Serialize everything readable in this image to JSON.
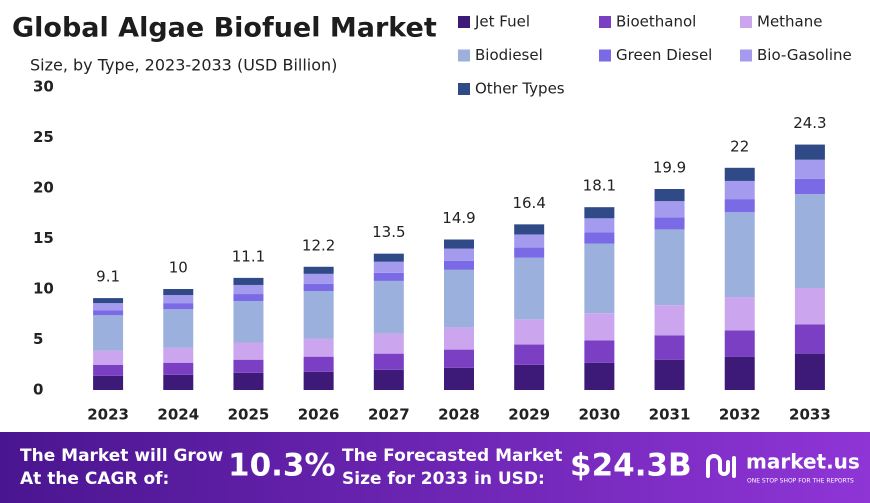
{
  "chart_data": {
    "type": "stacked_bar",
    "title": "Global Algae Biofuel Market",
    "subtitle": "Size, by Type, 2023-2033 (USD Billion)",
    "categories": [
      "2023",
      "2024",
      "2025",
      "2026",
      "2027",
      "2028",
      "2029",
      "2030",
      "2031",
      "2032",
      "2033"
    ],
    "series": [
      {
        "name": "Jet Fuel",
        "color": "#3d1a78",
        "values": [
          1.4,
          1.5,
          1.7,
          1.8,
          2.0,
          2.2,
          2.5,
          2.7,
          3.0,
          3.3,
          3.6
        ]
      },
      {
        "name": "Bioethanol",
        "color": "#7b3fc4",
        "values": [
          1.1,
          1.2,
          1.3,
          1.5,
          1.6,
          1.8,
          2.0,
          2.2,
          2.4,
          2.6,
          2.9
        ]
      },
      {
        "name": "Methane",
        "color": "#cba6ee",
        "values": [
          1.4,
          1.5,
          1.7,
          1.8,
          2.0,
          2.2,
          2.5,
          2.7,
          3.0,
          3.3,
          3.6
        ]
      },
      {
        "name": "Biodiesel",
        "color": "#9bb0dc",
        "values": [
          3.5,
          3.8,
          4.1,
          4.7,
          5.2,
          5.7,
          6.1,
          6.9,
          7.5,
          8.4,
          9.3
        ]
      },
      {
        "name": "Green Diesel",
        "color": "#7a6ae6",
        "values": [
          0.5,
          0.6,
          0.7,
          0.7,
          0.8,
          0.9,
          1.0,
          1.1,
          1.2,
          1.3,
          1.5
        ]
      },
      {
        "name": "Bio-Gasoline",
        "color": "#a49bef",
        "values": [
          0.7,
          0.8,
          0.9,
          1.0,
          1.1,
          1.2,
          1.3,
          1.4,
          1.6,
          1.8,
          1.9
        ]
      },
      {
        "name": "Other Types",
        "color": "#2f4a86",
        "values": [
          0.5,
          0.6,
          0.7,
          0.7,
          0.8,
          0.9,
          1.0,
          1.1,
          1.2,
          1.3,
          1.5
        ]
      }
    ],
    "totals": [
      9.1,
      10.0,
      11.1,
      12.2,
      13.5,
      14.9,
      16.4,
      18.1,
      19.9,
      22.0,
      24.3
    ],
    "ylim": [
      0,
      30
    ],
    "yticks": [
      0,
      5,
      10,
      15,
      20,
      25,
      30
    ],
    "grid": false
  },
  "footer": {
    "cagr_text_1": "The Market will Grow",
    "cagr_text_2": "At the CAGR of:",
    "cagr": "10.3%",
    "forecast_text_1": "The Forecasted Market",
    "forecast_text_2": "Size for 2033 in USD:",
    "forecast": "$24.3B",
    "brand": "market.us",
    "tagline": "ONE STOP SHOP FOR THE REPORTS"
  }
}
